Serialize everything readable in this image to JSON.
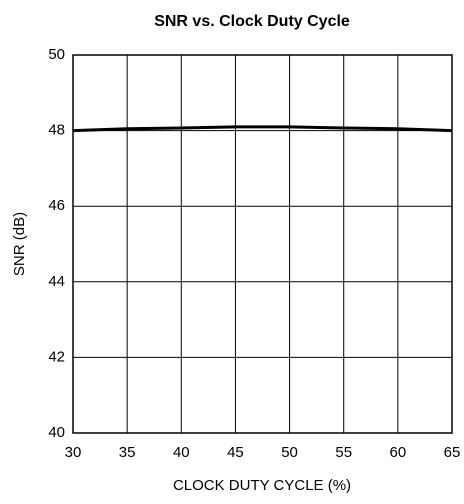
{
  "chart_data": {
    "type": "line",
    "title": "SNR vs. Clock Duty Cycle",
    "x_label": "CLOCK DUTY CYCLE (%)",
    "y_label": "SNR (dB)",
    "x": [
      30,
      35,
      40,
      45,
      50,
      55,
      60,
      65
    ],
    "series": [
      {
        "name": "SNR",
        "color": "#000000",
        "values": [
          48.0,
          48.05,
          48.07,
          48.1,
          48.1,
          48.07,
          48.05,
          48.0
        ]
      }
    ],
    "xlim": [
      30,
      65
    ],
    "xticks": [
      30,
      35,
      40,
      45,
      50,
      55,
      60,
      65
    ],
    "ylim": [
      40,
      50
    ],
    "yticks": [
      40,
      42,
      44,
      46,
      48,
      50
    ],
    "grid": true
  }
}
